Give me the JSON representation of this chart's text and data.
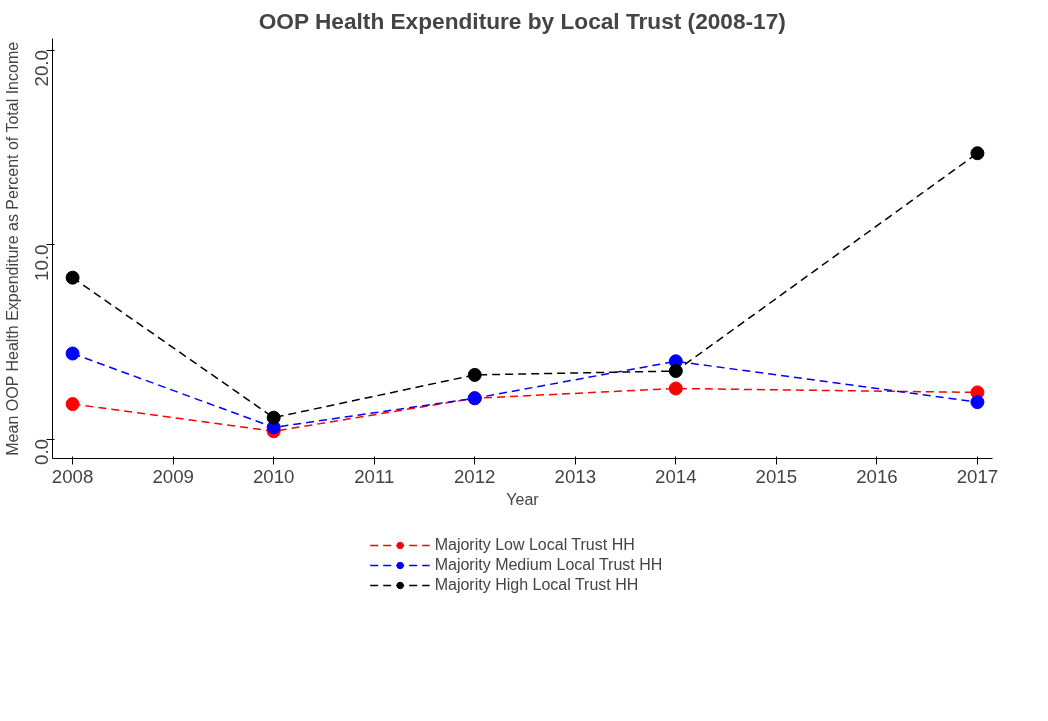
{
  "chart_data": {
    "type": "line",
    "title": "OOP Health Expenditure by Local Trust (2008-17)",
    "xlabel": "Year",
    "ylabel": "Mean OOP Health Expenditure as Percent of Total Income",
    "x": [
      2008,
      2010,
      2012,
      2014,
      2017
    ],
    "series": [
      {
        "name": "Majority Low Local Trust HH",
        "color": "#ff0000",
        "values": [
          1.8,
          0.4,
          2.1,
          2.6,
          2.4
        ]
      },
      {
        "name": "Majority Medium Local Trust HH",
        "color": "#0000ff",
        "values": [
          4.4,
          0.6,
          2.1,
          4.0,
          1.9
        ]
      },
      {
        "name": "Majority High Local Trust HH",
        "color": "#000000",
        "values": [
          8.3,
          1.1,
          3.3,
          3.5,
          14.7
        ]
      }
    ],
    "xlim": [
      2007.8,
      2017.15
    ],
    "ylim": [
      -1.0,
      20.6
    ],
    "xticks": [
      2008,
      2009,
      2010,
      2011,
      2012,
      2013,
      2014,
      2015,
      2016,
      2017
    ],
    "yticks": [
      {
        "value": 0,
        "label": "0.0"
      },
      {
        "value": 10,
        "label": "10.0"
      },
      {
        "value": 20,
        "label": "20.0"
      }
    ],
    "grid": false,
    "legend": "bottom",
    "marker": "circle",
    "line_style": "dashed"
  }
}
